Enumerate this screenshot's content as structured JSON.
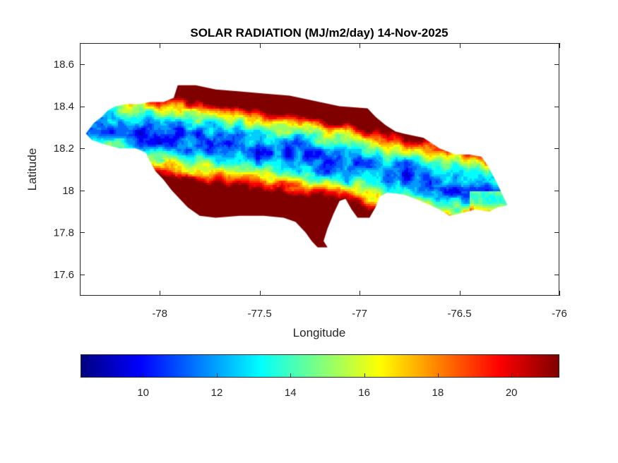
{
  "chart_data": {
    "type": "heatmap",
    "title": "SOLAR RADIATION (MJ/m2/day) 14-Nov-2025",
    "xlabel": "Longitude",
    "ylabel": "Latitude",
    "xlim": [
      -78.4,
      -76.0
    ],
    "ylim": [
      17.5,
      18.7
    ],
    "xticks": [
      -78,
      -77.5,
      -77,
      -76.5,
      -76
    ],
    "xtick_labels": [
      "-78",
      "-77.5",
      "-77",
      "-76.5",
      "-76"
    ],
    "yticks": [
      17.6,
      17.8,
      18.0,
      18.2,
      18.4,
      18.6
    ],
    "ytick_labels": [
      "17.6",
      "17.8",
      "18",
      "18.2",
      "18.4",
      "18.6"
    ],
    "grid": false,
    "colormap": "jet",
    "colorbar": {
      "location": "bottom",
      "clim": [
        8.3,
        21.3
      ],
      "ticks": [
        10,
        12,
        14,
        16,
        18,
        20
      ],
      "tick_labels": [
        "10",
        "12",
        "14",
        "16",
        "18",
        "20"
      ]
    },
    "region": "Jamaica",
    "field_description": "Low values (about 9-13) along the central-north interior band from -78.3 to -76.3 longitude; high values (19-21) along the south coast and far east; intermediate (15-18) on the northern fringe.",
    "outline_lonlat": [
      [
        -78.37,
        18.27
      ],
      [
        -78.33,
        18.32
      ],
      [
        -78.29,
        18.35
      ],
      [
        -78.26,
        18.38
      ],
      [
        -78.22,
        18.4
      ],
      [
        -78.17,
        18.41
      ],
      [
        -78.1,
        18.41
      ],
      [
        -78.05,
        18.42
      ],
      [
        -77.98,
        18.42
      ],
      [
        -77.93,
        18.44
      ],
      [
        -77.91,
        18.5
      ],
      [
        -77.82,
        18.5
      ],
      [
        -77.72,
        18.48
      ],
      [
        -77.6,
        18.47
      ],
      [
        -77.48,
        18.46
      ],
      [
        -77.35,
        18.45
      ],
      [
        -77.2,
        18.42
      ],
      [
        -77.1,
        18.4
      ],
      [
        -76.96,
        18.39
      ],
      [
        -76.92,
        18.35
      ],
      [
        -76.87,
        18.31
      ],
      [
        -76.82,
        18.28
      ],
      [
        -76.78,
        18.27
      ],
      [
        -76.68,
        18.25
      ],
      [
        -76.6,
        18.2
      ],
      [
        -76.52,
        18.17
      ],
      [
        -76.45,
        18.17
      ],
      [
        -76.39,
        18.16
      ],
      [
        -76.36,
        18.12
      ],
      [
        -76.32,
        18.05
      ],
      [
        -76.29,
        17.99
      ],
      [
        -76.26,
        17.93
      ],
      [
        -76.31,
        17.92
      ],
      [
        -76.35,
        17.9
      ],
      [
        -76.42,
        17.91
      ],
      [
        -76.5,
        17.89
      ],
      [
        -76.55,
        17.88
      ],
      [
        -76.6,
        17.91
      ],
      [
        -76.67,
        17.94
      ],
      [
        -76.72,
        17.96
      ],
      [
        -76.78,
        17.98
      ],
      [
        -76.86,
        17.99
      ],
      [
        -76.9,
        17.97
      ],
      [
        -76.92,
        17.92
      ],
      [
        -76.95,
        17.87
      ],
      [
        -77.01,
        17.87
      ],
      [
        -77.04,
        17.91
      ],
      [
        -77.07,
        17.96
      ],
      [
        -77.1,
        17.95
      ],
      [
        -77.13,
        17.89
      ],
      [
        -77.16,
        17.82
      ],
      [
        -77.18,
        17.76
      ],
      [
        -77.16,
        17.73
      ],
      [
        -77.21,
        17.73
      ],
      [
        -77.24,
        17.76
      ],
      [
        -77.27,
        17.8
      ],
      [
        -77.32,
        17.85
      ],
      [
        -77.38,
        17.87
      ],
      [
        -77.48,
        17.88
      ],
      [
        -77.6,
        17.88
      ],
      [
        -77.72,
        17.87
      ],
      [
        -77.8,
        17.88
      ],
      [
        -77.86,
        17.92
      ],
      [
        -77.9,
        17.96
      ],
      [
        -77.94,
        18.0
      ],
      [
        -77.98,
        18.05
      ],
      [
        -78.02,
        18.09
      ],
      [
        -78.05,
        18.14
      ],
      [
        -78.07,
        18.18
      ],
      [
        -78.12,
        18.2
      ],
      [
        -78.2,
        18.2
      ],
      [
        -78.28,
        18.22
      ],
      [
        -78.34,
        18.24
      ],
      [
        -78.37,
        18.27
      ]
    ]
  }
}
